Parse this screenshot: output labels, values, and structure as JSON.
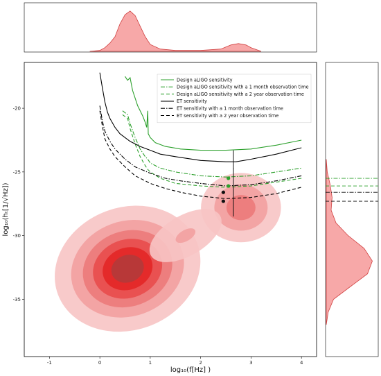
{
  "chart_data": {
    "type": "scatter",
    "title": "",
    "xlabel": "log₁₀(f[Hz] )",
    "ylabel": "log₁₀(hₜ[1/√Hz])",
    "xlim": [
      -1.5,
      4.3
    ],
    "ylim": [
      -39.5,
      -16.4
    ],
    "xticks": [
      -1,
      0,
      1,
      2,
      3,
      4
    ],
    "yticks": [
      -20,
      -25,
      -30,
      -35
    ],
    "grid": false,
    "legend_position": "top-right",
    "density": {
      "description": "2D KDE of source points",
      "color": "#ee3333",
      "components": [
        {
          "cx": 0.55,
          "cy": -32.6,
          "sx": 0.55,
          "sy": 1.8,
          "rot": -20,
          "w": 1.0
        },
        {
          "cx": 2.8,
          "cy": -27.8,
          "sx": 0.35,
          "sy": 1.2,
          "rot": 0,
          "w": 0.55
        },
        {
          "cx": 1.7,
          "cy": -30.0,
          "sx": 0.45,
          "sy": 0.9,
          "rot": -30,
          "w": 0.3
        }
      ]
    },
    "series": [
      {
        "name": "Design aLIGO sensitivity",
        "color": "#2ca02c",
        "dash": "solid",
        "points": [
          [
            0.5,
            -17.5
          ],
          [
            0.55,
            -17.8
          ],
          [
            0.6,
            -17.6
          ],
          [
            0.65,
            -18.6
          ],
          [
            0.75,
            -19.8
          ],
          [
            0.85,
            -20.6
          ],
          [
            0.9,
            -21.1
          ],
          [
            0.93,
            -21.5
          ],
          [
            0.95,
            -20.2
          ],
          [
            0.96,
            -22.0
          ],
          [
            1.0,
            -22.3
          ],
          [
            1.1,
            -22.7
          ],
          [
            1.3,
            -23.0
          ],
          [
            1.6,
            -23.2
          ],
          [
            2.0,
            -23.3
          ],
          [
            2.5,
            -23.3
          ],
          [
            3.0,
            -23.2
          ],
          [
            3.5,
            -22.9
          ],
          [
            4.0,
            -22.5
          ]
        ]
      },
      {
        "name": "Design aLIGO sensitivity with a 1 month observation time",
        "color": "#2ca02c",
        "dash": "dashdot",
        "points": [
          [
            0.45,
            -20.2
          ],
          [
            0.55,
            -20.5
          ],
          [
            0.6,
            -21.2
          ],
          [
            0.7,
            -22.3
          ],
          [
            0.8,
            -23.2
          ],
          [
            0.9,
            -23.8
          ],
          [
            0.95,
            -24.0
          ],
          [
            1.0,
            -24.3
          ],
          [
            1.2,
            -24.7
          ],
          [
            1.5,
            -25.0
          ],
          [
            2.0,
            -25.3
          ],
          [
            2.5,
            -25.4
          ],
          [
            3.0,
            -25.3
          ],
          [
            3.5,
            -25.0
          ],
          [
            4.0,
            -24.7
          ]
        ]
      },
      {
        "name": "Design aLIGO sensitivity with a 2 year observation time",
        "color": "#2ca02c",
        "dash": "dashed",
        "points": [
          [
            0.45,
            -20.5
          ],
          [
            0.55,
            -20.8
          ],
          [
            0.6,
            -21.6
          ],
          [
            0.7,
            -22.8
          ],
          [
            0.8,
            -23.8
          ],
          [
            0.9,
            -24.5
          ],
          [
            0.95,
            -24.8
          ],
          [
            1.0,
            -25.0
          ],
          [
            1.2,
            -25.5
          ],
          [
            1.5,
            -25.9
          ],
          [
            2.0,
            -26.1
          ],
          [
            2.5,
            -26.2
          ],
          [
            3.0,
            -26.1
          ],
          [
            3.5,
            -25.8
          ],
          [
            4.0,
            -25.5
          ]
        ]
      },
      {
        "name": "ET sensitivity",
        "color": "#000000",
        "dash": "solid",
        "points": [
          [
            0.0,
            -17.2
          ],
          [
            0.05,
            -18.4
          ],
          [
            0.1,
            -19.5
          ],
          [
            0.15,
            -20.3
          ],
          [
            0.2,
            -20.8
          ],
          [
            0.3,
            -21.5
          ],
          [
            0.4,
            -22.0
          ],
          [
            0.6,
            -22.6
          ],
          [
            0.8,
            -23.0
          ],
          [
            1.0,
            -23.3
          ],
          [
            1.2,
            -23.6
          ],
          [
            1.5,
            -23.8
          ],
          [
            2.0,
            -24.1
          ],
          [
            2.5,
            -24.2
          ],
          [
            2.7,
            -24.2
          ],
          [
            3.0,
            -24.0
          ],
          [
            3.5,
            -23.6
          ],
          [
            4.0,
            -23.1
          ]
        ]
      },
      {
        "name": "ET sensitivity with a 1 month observation time",
        "color": "#000000",
        "dash": "dashdot",
        "points": [
          [
            0.0,
            -19.8
          ],
          [
            0.05,
            -21.0
          ],
          [
            0.1,
            -21.8
          ],
          [
            0.2,
            -22.6
          ],
          [
            0.3,
            -23.2
          ],
          [
            0.5,
            -24.0
          ],
          [
            0.7,
            -24.6
          ],
          [
            1.0,
            -25.1
          ],
          [
            1.3,
            -25.5
          ],
          [
            1.6,
            -25.7
          ],
          [
            2.0,
            -25.9
          ],
          [
            2.5,
            -26.1
          ],
          [
            3.0,
            -26.0
          ],
          [
            3.5,
            -25.7
          ],
          [
            4.0,
            -25.3
          ]
        ]
      },
      {
        "name": "ET sensitivity with a 2 year observation time",
        "color": "#000000",
        "dash": "dashed",
        "points": [
          [
            0.0,
            -20.2
          ],
          [
            0.05,
            -21.4
          ],
          [
            0.1,
            -22.4
          ],
          [
            0.2,
            -23.2
          ],
          [
            0.3,
            -23.8
          ],
          [
            0.5,
            -24.6
          ],
          [
            0.7,
            -25.3
          ],
          [
            1.0,
            -25.9
          ],
          [
            1.3,
            -26.3
          ],
          [
            1.6,
            -26.6
          ],
          [
            2.0,
            -26.9
          ],
          [
            2.5,
            -27.1
          ],
          [
            3.0,
            -27.0
          ],
          [
            3.5,
            -26.7
          ],
          [
            4.0,
            -26.2
          ]
        ]
      }
    ],
    "markers": [
      {
        "x": 2.55,
        "y": -25.5,
        "color": "#2ca02c"
      },
      {
        "x": 2.55,
        "y": -26.1,
        "color": "#2ca02c"
      },
      {
        "x": 2.45,
        "y": -26.6,
        "color": "#111111"
      },
      {
        "x": 2.45,
        "y": -27.3,
        "color": "#111111"
      }
    ],
    "marginal_top": {
      "description": "1D KDE of x",
      "xlim": [
        -1.5,
        4.3
      ],
      "color": "#ee3333",
      "points": [
        [
          -0.2,
          0.0
        ],
        [
          0.0,
          0.02
        ],
        [
          0.1,
          0.08
        ],
        [
          0.2,
          0.18
        ],
        [
          0.3,
          0.32
        ],
        [
          0.4,
          0.6
        ],
        [
          0.5,
          0.8
        ],
        [
          0.6,
          0.88
        ],
        [
          0.7,
          0.78
        ],
        [
          0.8,
          0.55
        ],
        [
          0.9,
          0.32
        ],
        [
          1.0,
          0.15
        ],
        [
          1.2,
          0.05
        ],
        [
          1.5,
          0.02
        ],
        [
          2.0,
          0.02
        ],
        [
          2.4,
          0.05
        ],
        [
          2.6,
          0.14
        ],
        [
          2.75,
          0.17
        ],
        [
          2.9,
          0.14
        ],
        [
          3.0,
          0.08
        ],
        [
          3.2,
          0.0
        ]
      ]
    },
    "marginal_right": {
      "description": "1D KDE of y",
      "ylim": [
        -39.5,
        -16.4
      ],
      "color": "#ee3333",
      "points": [
        [
          -24.0,
          0.0
        ],
        [
          -25.0,
          0.02
        ],
        [
          -26.0,
          0.08
        ],
        [
          -27.0,
          0.12
        ],
        [
          -28.0,
          0.1
        ],
        [
          -29.0,
          0.2
        ],
        [
          -30.0,
          0.45
        ],
        [
          -31.0,
          0.78
        ],
        [
          -32.0,
          0.95
        ],
        [
          -33.0,
          0.85
        ],
        [
          -34.0,
          0.5
        ],
        [
          -35.0,
          0.15
        ],
        [
          -36.0,
          0.04
        ],
        [
          -37.0,
          0.0
        ]
      ]
    }
  }
}
